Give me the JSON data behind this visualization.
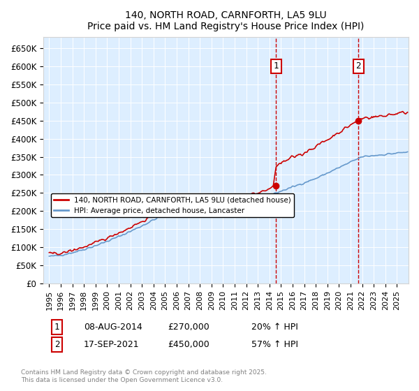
{
  "title": "140, NORTH ROAD, CARNFORTH, LA5 9LU",
  "subtitle": "Price paid vs. HM Land Registry's House Price Index (HPI)",
  "footer": "Contains HM Land Registry data © Crown copyright and database right 2025.\nThis data is licensed under the Open Government Licence v3.0.",
  "legend_line1": "140, NORTH ROAD, CARNFORTH, LA5 9LU (detached house)",
  "legend_line2": "HPI: Average price, detached house, Lancaster",
  "transaction1_label": "1",
  "transaction1_date": "08-AUG-2014",
  "transaction1_price": "£270,000",
  "transaction1_hpi": "20% ↑ HPI",
  "transaction2_label": "2",
  "transaction2_date": "17-SEP-2021",
  "transaction2_price": "£450,000",
  "transaction2_hpi": "57% ↑ HPI",
  "color_red": "#cc0000",
  "color_blue": "#6699cc",
  "color_dashed": "#cc0000",
  "background_color": "#ddeeff",
  "plot_bg": "#ddeeff",
  "ylim_min": 0,
  "ylim_max": 680000,
  "ytick_step": 50000,
  "x_start_year": 1995,
  "x_end_year": 2026
}
